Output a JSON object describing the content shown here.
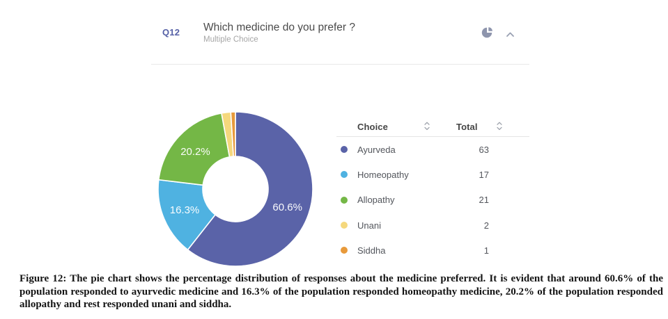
{
  "header": {
    "question_number": "Q12",
    "title": "Which medicine do you prefer ?",
    "subtitle": "Multiple Choice",
    "accent_color": "#5560a6",
    "icons": {
      "chart_type": "pie-chart-icon",
      "collapse": "chevron-up-icon",
      "icon_color": "#8e95ad"
    }
  },
  "table": {
    "columns": [
      "Choice",
      "Total"
    ],
    "sort_icon": "sort-arrows-icon",
    "rows": [
      {
        "label": "Ayurveda",
        "total": "63",
        "color": "#5a63a8"
      },
      {
        "label": "Homeopathy",
        "total": "17",
        "color": "#4fb2e1"
      },
      {
        "label": "Allopathy",
        "total": "21",
        "color": "#74b746"
      },
      {
        "label": "Unani",
        "total": "2",
        "color": "#f5d87d"
      },
      {
        "label": "Siddha",
        "total": "1",
        "color": "#e89a3b"
      }
    ]
  },
  "chart_data": {
    "type": "pie",
    "donut": true,
    "title": "Which medicine do you prefer ?",
    "categories": [
      "Ayurveda",
      "Homeopathy",
      "Allopathy",
      "Unani",
      "Siddha"
    ],
    "values": [
      63,
      17,
      21,
      2,
      1
    ],
    "percentages": [
      60.6,
      16.3,
      20.2,
      1.9,
      1.0
    ],
    "slice_labels": [
      "60.6%",
      "16.3%",
      "20.2%",
      "",
      ""
    ],
    "colors": [
      "#5a63a8",
      "#4fb2e1",
      "#74b746",
      "#f5d87d",
      "#e89a3b"
    ],
    "start_angle_deg": -90,
    "direction": "clockwise",
    "label_color": "#ffffff",
    "legend_position": "right-table",
    "gap_color": "#ffffff"
  },
  "caption": {
    "text": "Figure 12: The pie chart shows the percentage distribution of responses about the medicine preferred. It is evident that around 60.6% of the population responded to ayurvedic medicine and 16.3% of the population responded homeopathy medicine, 20.2% of the population responded allopathy and rest responded unani and siddha."
  }
}
